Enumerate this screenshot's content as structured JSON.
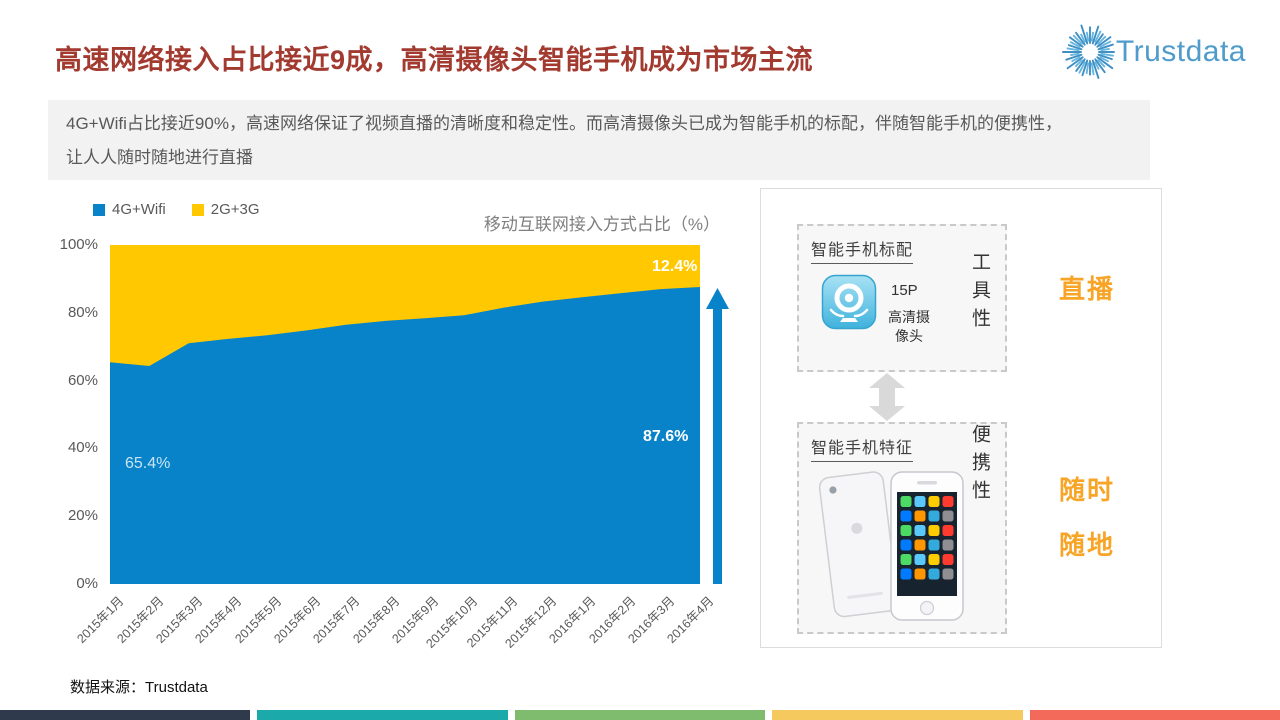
{
  "header": {
    "title": "高速网络接入占比接近9成，高清摄像头智能手机成为市场主流",
    "logo_text": "Trustdata",
    "logo_color": "#4f9bcb"
  },
  "summary": {
    "line1": "4G+Wifi占比接近90%，高速网络保证了视频直播的清晰度和稳定性。而高清摄像头已成为智能手机的标配，伴随智能手机的便携性，",
    "line2": "让人人随时随地进行直播"
  },
  "chart_data": {
    "type": "area",
    "stacked": true,
    "title": "移动互联网接入方式占比（%）",
    "categories": [
      "2015年1月",
      "2015年2月",
      "2015年3月",
      "2015年4月",
      "2015年5月",
      "2015年6月",
      "2015年7月",
      "2015年8月",
      "2015年9月",
      "2015年10月",
      "2015年11月",
      "2015年12月",
      "2016年1月",
      "2016年2月",
      "2016年3月",
      "2016年4月"
    ],
    "series": [
      {
        "name": "4G+Wifi",
        "color": "#0883c9",
        "values": [
          65.4,
          64.3,
          71.0,
          72.3,
          73.4,
          74.8,
          76.5,
          77.6,
          78.4,
          79.3,
          81.5,
          83.3,
          84.6,
          85.8,
          87.0,
          87.6
        ]
      },
      {
        "name": "2G+3G",
        "color": "#ffc800",
        "values": [
          34.6,
          35.7,
          29.0,
          27.7,
          26.6,
          25.2,
          23.5,
          22.4,
          21.6,
          20.7,
          18.5,
          16.7,
          15.4,
          14.2,
          13.0,
          12.4
        ]
      }
    ],
    "ylim": [
      0,
      100
    ],
    "y_ticks": [
      "100%",
      "80%",
      "60%",
      "40%",
      "20%",
      "0%"
    ],
    "grid": false,
    "legend_position": "top-left",
    "labels": {
      "first_blue": "65.4%",
      "last_blue": "87.6%",
      "last_yellow": "12.4%"
    }
  },
  "panel": {
    "accent_color": "#f8a427",
    "box_top": {
      "title": "智能手机标配",
      "icon": "webcam-icon",
      "spec_line1": "15P",
      "spec_line2": "高清摄像头",
      "trait": "工具性"
    },
    "box_bottom": {
      "title": "智能手机特征",
      "icon": "iphone-image",
      "trait": "便携性"
    },
    "keywords": {
      "top": "直播",
      "middle": "随时",
      "bottom": "随地"
    }
  },
  "footer": {
    "source": "数据来源：Trustdata"
  },
  "bottom_bars": [
    "#2f3b4d",
    "#1ca9a9",
    "#80bc6e",
    "#f6c95e",
    "#f46a5a"
  ]
}
